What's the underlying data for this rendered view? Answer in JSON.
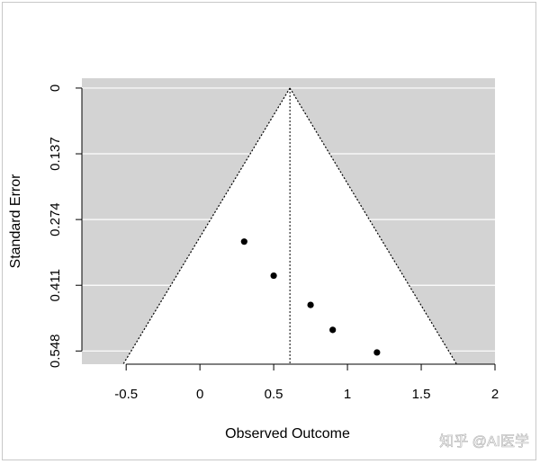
{
  "chart_data": {
    "type": "scatter",
    "title": "",
    "xlabel": "Observed Outcome",
    "ylabel": "Standard Error",
    "xlim": [
      -0.8,
      2.0
    ],
    "ylim": [
      0.5755,
      0
    ],
    "x_ticks": [
      {
        "value": -0.5,
        "label": "-0.5"
      },
      {
        "value": 0,
        "label": "0"
      },
      {
        "value": 0.5,
        "label": "0.5"
      },
      {
        "value": 1,
        "label": "1"
      },
      {
        "value": 1.5,
        "label": "1.5"
      },
      {
        "value": 2,
        "label": "2"
      }
    ],
    "y_ticks": [
      {
        "value": 0,
        "label": "0"
      },
      {
        "value": 0.137,
        "label": "0.137"
      },
      {
        "value": 0.274,
        "label": "0.274"
      },
      {
        "value": 0.411,
        "label": "0.411"
      },
      {
        "value": 0.548,
        "label": "0.548"
      }
    ],
    "points": [
      {
        "x": 0.3,
        "y": 0.32
      },
      {
        "x": 0.5,
        "y": 0.391
      },
      {
        "x": 0.75,
        "y": 0.452
      },
      {
        "x": 0.9,
        "y": 0.504
      },
      {
        "x": 1.2,
        "y": 0.551
      }
    ],
    "funnel": {
      "center": 0.61,
      "apex_se": 0,
      "left_at_bottom": -0.52,
      "right_at_bottom": 1.74,
      "bottom_se": 0.5755
    },
    "grid": true,
    "colors": {
      "panel_background": "#d3d3d3",
      "funnel_region": "#ffffff",
      "gridline": "#ffffff",
      "point": "#000000"
    }
  },
  "watermark": "知乎 @AI医学"
}
